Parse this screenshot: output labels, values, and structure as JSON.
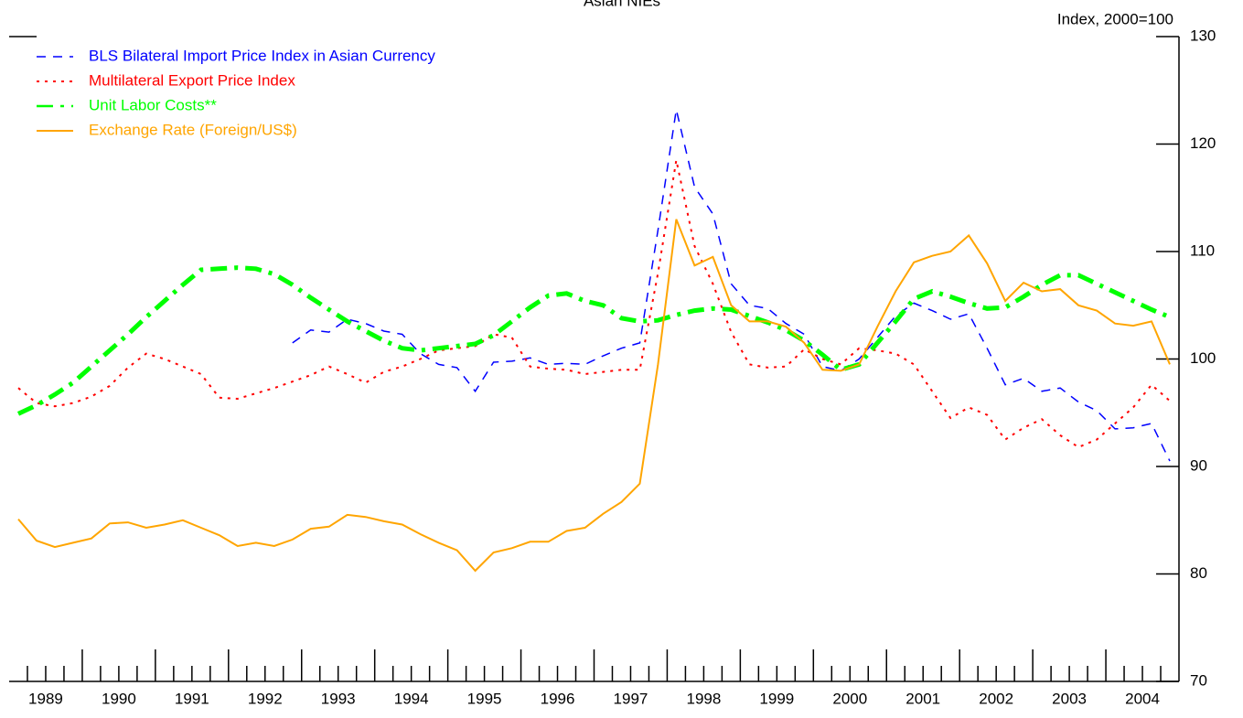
{
  "chart_data": {
    "type": "line",
    "title": "Asian NIEs",
    "y_axis_label": "Index, 2000=100",
    "categories": [
      "1989",
      null,
      null,
      null,
      "1990",
      null,
      null,
      null,
      "1991",
      null,
      null,
      null,
      "1992",
      null,
      null,
      null,
      "1993",
      null,
      null,
      null,
      "1994",
      null,
      null,
      null,
      "1995",
      null,
      null,
      null,
      "1996",
      null,
      null,
      null,
      "1997",
      null,
      null,
      null,
      "1998",
      null,
      null,
      null,
      "1999",
      null,
      null,
      null,
      "2000",
      null,
      null,
      null,
      "2001",
      null,
      null,
      null,
      "2002",
      null,
      null,
      null,
      "2003",
      null,
      null,
      null,
      "2004",
      null,
      null,
      null
    ],
    "ylim": [
      70,
      130
    ],
    "yticks": [
      70,
      80,
      90,
      100,
      110,
      120,
      130
    ],
    "y_axis_side": "right",
    "grid": false,
    "legend": "top-left",
    "series": [
      {
        "name": "BLS Bilateral Import Price Index in Asian Currency",
        "color": "#0000ff",
        "style": "dashed",
        "values": [
          null,
          null,
          null,
          null,
          null,
          null,
          null,
          null,
          null,
          null,
          null,
          null,
          null,
          null,
          null,
          101.5,
          102.7,
          102.5,
          103.7,
          103.3,
          102.6,
          102.3,
          100.5,
          99.5,
          99.2,
          97.0,
          99.7,
          99.8,
          100.1,
          99.5,
          99.6,
          99.5,
          100.3,
          101.0,
          101.5,
          112.0,
          123.2,
          116.0,
          113.5,
          107.0,
          105.0,
          104.7,
          103.3,
          102.3,
          99.3,
          98.9,
          100.0,
          102.0,
          104.0,
          105.2,
          104.5,
          103.7,
          104.2,
          101.0,
          97.6,
          98.2,
          97.0,
          97.3,
          96.0,
          95.2,
          93.5,
          93.6,
          94.0,
          90.5
        ]
      },
      {
        "name": "Multilateral Export Price Index",
        "color": "#ff0000",
        "style": "dotted",
        "values": [
          97.3,
          95.9,
          95.6,
          95.9,
          96.5,
          97.5,
          99.2,
          100.5,
          100.0,
          99.3,
          98.6,
          96.4,
          96.3,
          96.8,
          97.3,
          97.9,
          98.5,
          99.3,
          98.6,
          97.8,
          98.8,
          99.3,
          100.0,
          100.8,
          101.0,
          101.2,
          102.3,
          102.0,
          99.3,
          99.1,
          99.0,
          98.6,
          98.8,
          99.0,
          99.0,
          108.0,
          118.5,
          110.5,
          107.0,
          102.5,
          99.5,
          99.2,
          99.3,
          100.9,
          100.0,
          99.5,
          101.0,
          100.8,
          100.5,
          99.5,
          97.0,
          94.5,
          95.5,
          94.8,
          92.5,
          93.6,
          94.4,
          92.9,
          91.8,
          92.5,
          94.0,
          95.5,
          97.6,
          96.1
        ]
      },
      {
        "name": "Unit Labor Costs**",
        "color": "#00ff00",
        "style": "dashdot",
        "values": [
          94.9,
          95.7,
          96.7,
          97.8,
          99.3,
          100.8,
          102.3,
          103.9,
          105.4,
          106.9,
          108.3,
          108.4,
          108.5,
          108.4,
          107.9,
          106.9,
          105.7,
          104.6,
          103.5,
          102.6,
          101.7,
          101.0,
          100.8,
          101.0,
          101.2,
          101.4,
          102.2,
          103.5,
          104.8,
          105.9,
          106.1,
          105.4,
          105.0,
          103.8,
          103.5,
          103.6,
          104.1,
          104.5,
          104.7,
          104.6,
          104.0,
          103.4,
          102.7,
          101.7,
          100.4,
          99.0,
          99.5,
          101.5,
          103.5,
          105.6,
          106.3,
          105.8,
          105.2,
          104.7,
          104.8,
          105.8,
          106.9,
          107.8,
          107.8,
          107.0,
          106.2,
          105.4,
          104.6,
          103.9
        ]
      },
      {
        "name": "Exchange Rate (Foreign/US$)",
        "color": "#ffa500",
        "style": "solid",
        "values": [
          85.1,
          83.1,
          82.5,
          82.9,
          83.3,
          84.7,
          84.8,
          84.3,
          84.6,
          85.0,
          84.3,
          83.6,
          82.6,
          82.9,
          82.6,
          83.2,
          84.2,
          84.4,
          85.5,
          85.3,
          84.9,
          84.6,
          83.7,
          82.9,
          82.2,
          80.3,
          82.0,
          82.4,
          83.0,
          83.0,
          84.0,
          84.3,
          85.6,
          86.7,
          88.4,
          99.5,
          113.0,
          108.7,
          109.5,
          105.0,
          103.5,
          103.5,
          103.0,
          101.5,
          99.0,
          98.9,
          99.5,
          103.0,
          106.3,
          109.0,
          109.6,
          110.0,
          111.5,
          108.9,
          105.4,
          107.1,
          106.3,
          106.5,
          105.0,
          104.5,
          103.3,
          103.1,
          103.5,
          99.5
        ]
      }
    ]
  }
}
